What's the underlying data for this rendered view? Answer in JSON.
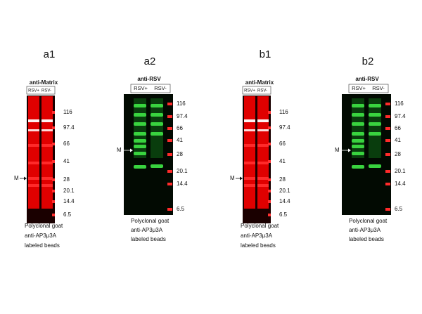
{
  "panels": [
    {
      "label": "a1",
      "antibody": "anti-Matrix",
      "lanes": [
        "RSV+",
        "RSV-"
      ],
      "markers": [
        "116",
        "97.4",
        "66",
        "41",
        "28",
        "20.1",
        "14.4",
        "6.5"
      ],
      "band_marker": "M",
      "caption": [
        "Polyclonal goat",
        "anti-AP3μ3A",
        "labeled beads"
      ]
    },
    {
      "label": "a2",
      "antibody": "anti-RSV",
      "lanes": [
        "RSV+",
        "RSV-"
      ],
      "markers": [
        "116",
        "97.4",
        "66",
        "41",
        "28",
        "20.1",
        "14.4",
        "6.5"
      ],
      "band_marker": "M",
      "caption": [
        "Polyclonal goat",
        "anti-AP3μ3A",
        "labeled beads"
      ]
    },
    {
      "label": "b1",
      "antibody": "anti-Matrix",
      "lanes": [
        "RSV+",
        "RSV-"
      ],
      "markers": [
        "116",
        "97.4",
        "66",
        "41",
        "28",
        "20.1",
        "14.4",
        "6.5"
      ],
      "band_marker": "M",
      "caption": [
        "Polyclonal goat",
        "anti-AP3μ3A",
        "labeled beads"
      ]
    },
    {
      "label": "b2",
      "antibody": "anti-RSV",
      "lanes": [
        "RSV+",
        "RSV-"
      ],
      "markers": [
        "116",
        "97.4",
        "66",
        "41",
        "28",
        "20.1",
        "14.4",
        "6.5"
      ],
      "band_marker": "M",
      "caption": [
        "Polyclonal goat",
        "anti-AP3μ3A",
        "labeled beads"
      ]
    }
  ]
}
